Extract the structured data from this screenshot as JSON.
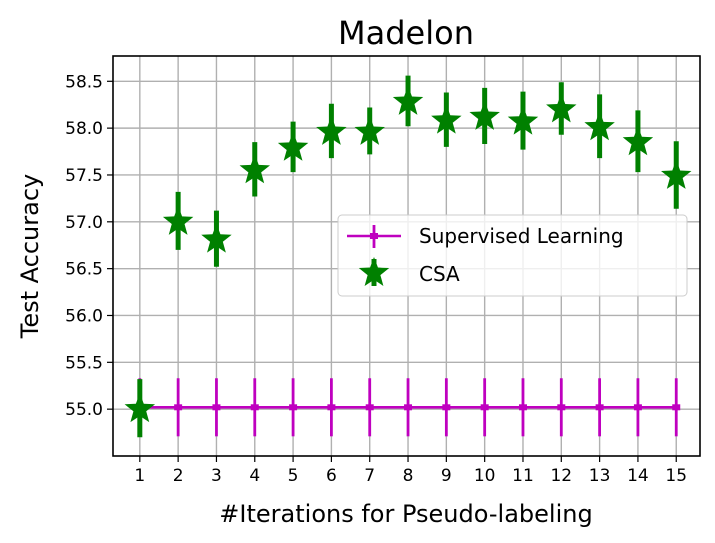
{
  "chart_data": {
    "type": "scatter",
    "title": "Madelon",
    "xlabel": "#Iterations for Pseudo-labeling",
    "ylabel": "Test Accuracy",
    "x": [
      1,
      2,
      3,
      4,
      5,
      6,
      7,
      8,
      9,
      10,
      11,
      12,
      13,
      14,
      15
    ],
    "xticks": [
      "1",
      "2",
      "3",
      "4",
      "5",
      "6",
      "7",
      "8",
      "9",
      "10",
      "11",
      "12",
      "13",
      "14",
      "15"
    ],
    "yticks": [
      "55.0",
      "55.5",
      "56.0",
      "56.5",
      "57.0",
      "57.5",
      "58.0",
      "58.5"
    ],
    "xlim": [
      0.3,
      15.62
    ],
    "ylim": [
      54.5,
      58.77
    ],
    "grid": true,
    "legend_position": "center right",
    "series": [
      {
        "name": "Supervised Learning",
        "color": "#bf00bf",
        "marker": "plus-line",
        "values": [
          55.02,
          55.02,
          55.02,
          55.02,
          55.02,
          55.02,
          55.02,
          55.02,
          55.02,
          55.02,
          55.02,
          55.02,
          55.02,
          55.02,
          55.02
        ],
        "errors": [
          0.31,
          0.31,
          0.31,
          0.31,
          0.31,
          0.31,
          0.31,
          0.31,
          0.31,
          0.31,
          0.31,
          0.31,
          0.31,
          0.31,
          0.31
        ]
      },
      {
        "name": "CSA",
        "color": "#008000",
        "marker": "star",
        "values": [
          55.01,
          57.01,
          56.82,
          57.56,
          57.8,
          57.97,
          57.97,
          58.29,
          58.09,
          58.13,
          58.08,
          58.21,
          58.02,
          57.86,
          57.5
        ],
        "errors": [
          0.31,
          0.31,
          0.3,
          0.29,
          0.27,
          0.29,
          0.25,
          0.27,
          0.29,
          0.3,
          0.31,
          0.28,
          0.34,
          0.33,
          0.36
        ]
      }
    ]
  }
}
